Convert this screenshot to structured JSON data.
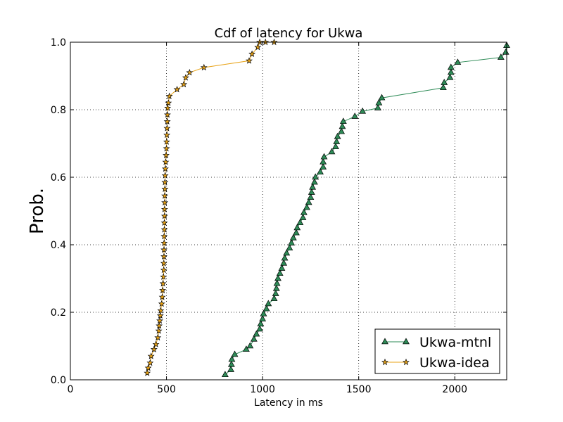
{
  "chart_data": {
    "type": "line",
    "title": "Cdf of latency for Ukwa",
    "xlabel": "Latency in ms",
    "ylabel": "Prob.",
    "xlim": [
      0,
      2270
    ],
    "ylim": [
      0.0,
      1.0
    ],
    "x_ticks": [
      "0",
      "500",
      "1000",
      "1500",
      "2000"
    ],
    "y_ticks": [
      "0.0",
      "0.2",
      "0.4",
      "0.6",
      "0.8",
      "1.0"
    ],
    "grid": true,
    "legend_position": "bottom-right",
    "series": [
      {
        "name": "Ukwa-mtnl",
        "color": "#2e8b57",
        "marker": "triangle",
        "x": [
          805,
          835,
          838,
          840,
          855,
          915,
          935,
          955,
          968,
          985,
          990,
          1000,
          1005,
          1020,
          1030,
          1060,
          1068,
          1072,
          1075,
          1080,
          1090,
          1100,
          1110,
          1115,
          1125,
          1140,
          1150,
          1160,
          1175,
          1180,
          1195,
          1210,
          1215,
          1230,
          1240,
          1250,
          1255,
          1260,
          1270,
          1275,
          1300,
          1315,
          1315,
          1320,
          1360,
          1380,
          1385,
          1390,
          1410,
          1415,
          1420,
          1480,
          1520,
          1600,
          1605,
          1620,
          1940,
          1945,
          1975,
          1980,
          1980,
          2015,
          2240,
          2265,
          2270
        ],
        "y": [
          0.015,
          0.03,
          0.045,
          0.06,
          0.075,
          0.09,
          0.1,
          0.12,
          0.135,
          0.15,
          0.165,
          0.18,
          0.195,
          0.21,
          0.225,
          0.24,
          0.255,
          0.27,
          0.285,
          0.3,
          0.315,
          0.33,
          0.345,
          0.36,
          0.375,
          0.39,
          0.405,
          0.42,
          0.435,
          0.45,
          0.465,
          0.48,
          0.495,
          0.51,
          0.525,
          0.54,
          0.555,
          0.57,
          0.585,
          0.6,
          0.615,
          0.63,
          0.645,
          0.66,
          0.675,
          0.69,
          0.705,
          0.72,
          0.735,
          0.75,
          0.765,
          0.78,
          0.795,
          0.805,
          0.82,
          0.835,
          0.865,
          0.88,
          0.895,
          0.91,
          0.925,
          0.94,
          0.955,
          0.97,
          0.99
        ]
      },
      {
        "name": "Ukwa-idea",
        "color": "#e8a317",
        "marker": "star",
        "x": [
          400,
          405,
          415,
          420,
          435,
          445,
          455,
          460,
          462,
          465,
          468,
          470,
          475,
          478,
          480,
          482,
          484,
          486,
          486,
          487,
          487,
          488,
          488,
          489,
          489,
          490,
          490,
          491,
          491,
          492,
          492,
          493,
          494,
          496,
          498,
          500,
          501,
          502,
          503,
          504,
          505,
          506,
          510,
          515,
          555,
          590,
          600,
          620,
          695,
          930,
          945,
          975,
          985,
          1015,
          1060
        ],
        "y": [
          0.02,
          0.035,
          0.05,
          0.07,
          0.09,
          0.105,
          0.125,
          0.145,
          0.16,
          0.175,
          0.19,
          0.205,
          0.225,
          0.245,
          0.265,
          0.285,
          0.305,
          0.325,
          0.345,
          0.365,
          0.385,
          0.405,
          0.425,
          0.445,
          0.465,
          0.485,
          0.505,
          0.525,
          0.545,
          0.565,
          0.585,
          0.605,
          0.625,
          0.645,
          0.665,
          0.685,
          0.705,
          0.725,
          0.745,
          0.765,
          0.785,
          0.805,
          0.82,
          0.84,
          0.86,
          0.875,
          0.895,
          0.91,
          0.925,
          0.945,
          0.965,
          0.985,
          1.0,
          1.0,
          1.0
        ]
      }
    ]
  }
}
